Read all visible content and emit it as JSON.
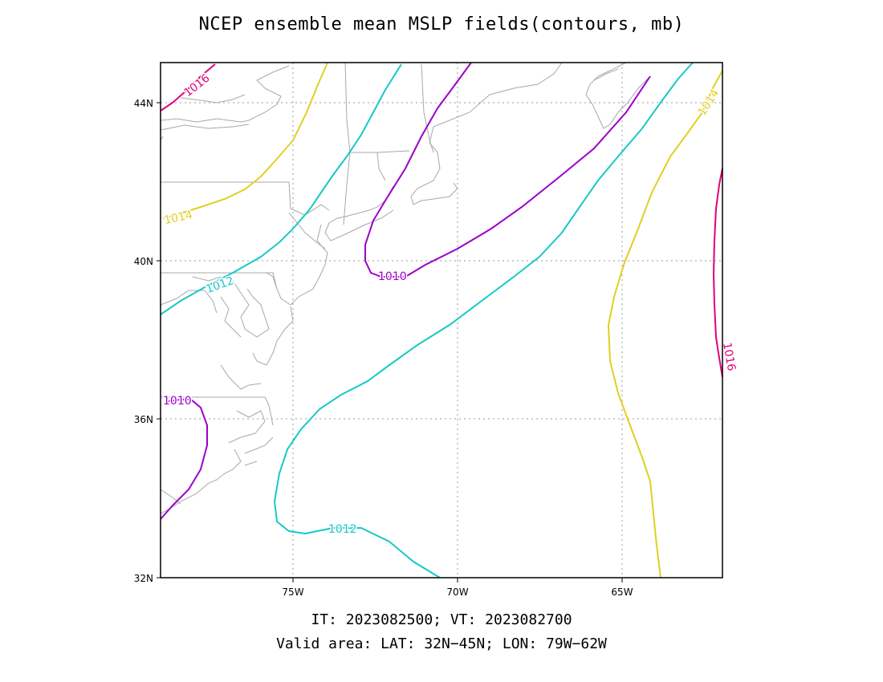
{
  "title": "NCEP ensemble mean MSLP fields(contours, mb)",
  "footer": {
    "line1": "IT: 2023082500; VT: 2023082700",
    "line2": "Valid area: LAT: 32N−45N; LON: 79W−62W"
  },
  "colors": {
    "c1010": "#9a00c8",
    "c1012": "#18c8c8",
    "c1014": "#e0d020",
    "c1016": "#e0007a",
    "coast": "#a8a8a8",
    "grid": "#9a9a9a"
  },
  "axes": {
    "lat_ticks": [
      "44N",
      "40N",
      "36N",
      "32N"
    ],
    "lon_ticks": [
      "75W",
      "70W",
      "65W"
    ]
  },
  "contour_labels": {
    "c1016_top": "1016",
    "c1014_left": "1014",
    "c1014_right": "1014",
    "c1012_left": "1012",
    "c1012_bottom": "1012",
    "c1010_north": "1010",
    "c1010_southwest": "1010",
    "c1016_right": "1016"
  }
}
